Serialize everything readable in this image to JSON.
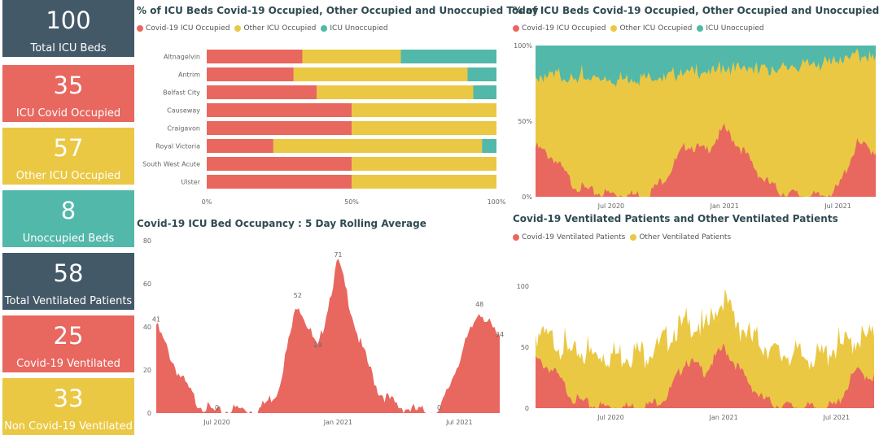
{
  "colors": {
    "covid": "#e8675f",
    "other": "#eac843",
    "unoccupied": "#52b8a9",
    "dark": "#445968"
  },
  "kpis": [
    {
      "value": "100",
      "label": "Total ICU Beds",
      "color": "#445968"
    },
    {
      "value": "35",
      "label": "ICU Covid Occupied",
      "color": "#e8675f"
    },
    {
      "value": "57",
      "label": "Other ICU Occupied",
      "color": "#eac843"
    },
    {
      "value": "8",
      "label": "Unoccupied Beds",
      "color": "#52b8a9"
    },
    {
      "value": "58",
      "label": "Total Ventilated Patients",
      "color": "#445968"
    },
    {
      "value": "25",
      "label": "Covid-19 Ventilated",
      "color": "#e8675f"
    },
    {
      "value": "33",
      "label": "Non Covid-19 Ventilated",
      "color": "#eac843"
    }
  ],
  "chart_data": [
    {
      "type": "bar",
      "title": "% of ICU Beds Covid-19 Occupied, Other Occupied and Unoccupied Today",
      "legend": [
        "Covid-19 ICU Occupied",
        "Other ICU Occupied",
        "ICU Unoccupied"
      ],
      "categories": [
        "Altnagelvin",
        "Antrim",
        "Belfast City",
        "Causeway",
        "Craigavon",
        "Royal Victoria",
        "South West Acute",
        "Ulster"
      ],
      "series": [
        {
          "name": "Covid-19 ICU Occupied",
          "values": [
            33,
            30,
            38,
            50,
            50,
            23,
            50,
            50
          ]
        },
        {
          "name": "Other ICU Occupied",
          "values": [
            34,
            60,
            54,
            50,
            50,
            72,
            50,
            50
          ]
        },
        {
          "name": "ICU Unoccupied",
          "values": [
            33,
            10,
            8,
            0,
            0,
            5,
            0,
            0
          ]
        }
      ],
      "x_ticks": [
        "0%",
        "50%",
        "100%"
      ],
      "xlim": [
        0,
        100
      ]
    },
    {
      "type": "area",
      "title": "% of ICU Beds Covid-19 Occupied, Other Occupied and Unoccupied",
      "legend": [
        "Covid-19 ICU Occupied",
        "Other ICU Occupied",
        "ICU Unoccupied"
      ],
      "x": [
        "2020-03",
        "2020-04",
        "2020-05",
        "2020-06",
        "2020-07",
        "2020-08",
        "2020-09",
        "2020-10",
        "2020-11",
        "2020-12",
        "2021-01",
        "2021-02",
        "2021-03",
        "2021-04",
        "2021-05",
        "2021-06",
        "2021-07",
        "2021-08",
        "2021-09"
      ],
      "series": [
        {
          "name": "Covid-19 ICU Occupied",
          "values": [
            33,
            25,
            8,
            3,
            2,
            1,
            2,
            15,
            35,
            30,
            45,
            30,
            12,
            3,
            1,
            0,
            5,
            35,
            30
          ]
        },
        {
          "name": "Other ICU Occupied",
          "values": [
            45,
            55,
            70,
            75,
            76,
            78,
            78,
            65,
            48,
            52,
            40,
            55,
            72,
            82,
            85,
            88,
            85,
            58,
            62
          ]
        },
        {
          "name": "ICU Unoccupied",
          "values": [
            22,
            20,
            22,
            22,
            22,
            21,
            20,
            20,
            17,
            18,
            15,
            15,
            16,
            15,
            14,
            12,
            10,
            7,
            8
          ]
        }
      ],
      "y_ticks": [
        "0%",
        "50%",
        "100%"
      ],
      "x_ticks": [
        "Jul 2020",
        "Jan 2021",
        "Jul 2021"
      ]
    },
    {
      "type": "area",
      "title": "Covid-19 ICU Bed Occupancy : 5 Day Rolling Average",
      "x": [
        "2020-04",
        "2020-05",
        "2020-06",
        "2020-07",
        "2020-08",
        "2020-09",
        "2020-10",
        "2020-11",
        "2020-12",
        "2021-01",
        "2021-02",
        "2021-03",
        "2021-04",
        "2021-05",
        "2021-06",
        "2021-07",
        "2021-08",
        "2021-09"
      ],
      "values": [
        41,
        20,
        5,
        0,
        2,
        1,
        10,
        52,
        29,
        71,
        35,
        10,
        3,
        1,
        0,
        25,
        48,
        34
      ],
      "data_labels": [
        {
          "x": "2020-04",
          "label": "41"
        },
        {
          "x": "2020-07",
          "label": "0"
        },
        {
          "x": "2020-11",
          "label": "52"
        },
        {
          "x": "2020-12",
          "label": "29"
        },
        {
          "x": "2021-01",
          "label": "71"
        },
        {
          "x": "2021-06",
          "label": "0"
        },
        {
          "x": "2021-08",
          "label": "48"
        },
        {
          "x": "2021-09",
          "label": "34"
        }
      ],
      "y_ticks": [
        "0",
        "20",
        "40",
        "60",
        "80"
      ],
      "ylim": [
        0,
        80
      ],
      "x_ticks": [
        "Jul 2020",
        "Jan 2021",
        "Jul 2021"
      ]
    },
    {
      "type": "area",
      "title": "Covid-19 Ventilated Patients and Other Ventilated Patients",
      "legend": [
        "Covid-19 Ventilated Patients",
        "Other Ventilated Patients"
      ],
      "x": [
        "2020-03",
        "2020-04",
        "2020-05",
        "2020-06",
        "2020-07",
        "2020-08",
        "2020-09",
        "2020-10",
        "2020-11",
        "2020-12",
        "2021-01",
        "2021-02",
        "2021-03",
        "2021-04",
        "2021-05",
        "2021-06",
        "2021-07",
        "2021-08",
        "2021-09"
      ],
      "series": [
        {
          "name": "Covid-19 Ventilated Patients",
          "values": [
            40,
            30,
            8,
            2,
            1,
            1,
            2,
            10,
            40,
            30,
            50,
            28,
            8,
            2,
            1,
            0,
            2,
            30,
            25
          ]
        },
        {
          "name": "Other Ventilated Patients",
          "values": [
            20,
            25,
            37,
            42,
            43,
            45,
            45,
            48,
            30,
            35,
            40,
            35,
            45,
            42,
            42,
            40,
            48,
            25,
            35
          ]
        }
      ],
      "y_ticks": [
        "0",
        "50",
        "100"
      ],
      "ylim": [
        0,
        110
      ],
      "x_ticks": [
        "Jul 2020",
        "Jan 2021",
        "Jul 2021"
      ]
    }
  ]
}
